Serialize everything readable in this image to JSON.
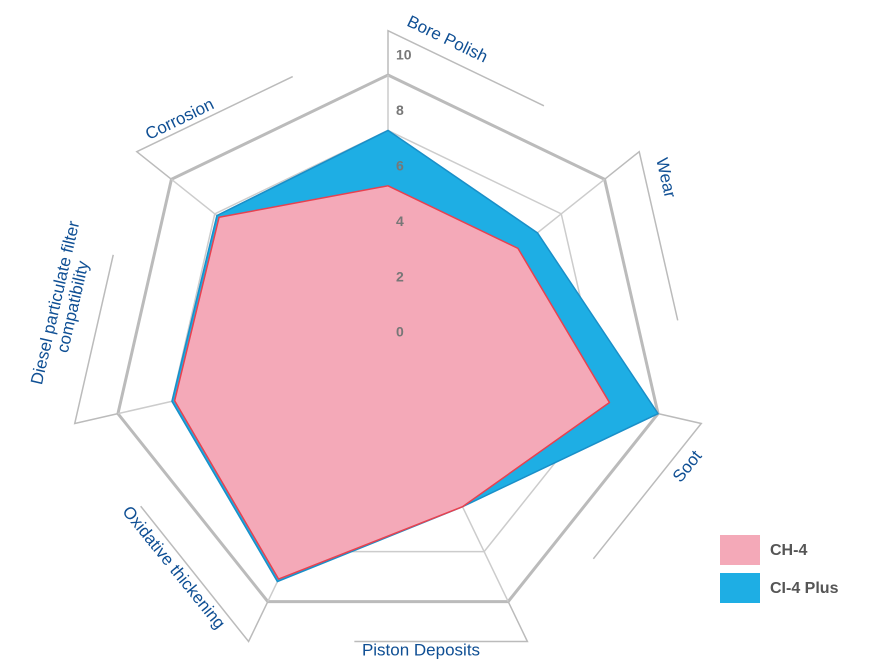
{
  "chart_data": {
    "type": "radar",
    "categories": [
      "Bore Polish",
      "Wear",
      "Soot",
      "Piston Deposits",
      "Oxidative thickening",
      [
        "Diesel particulate filter",
        "compatibility"
      ],
      "Corrosion"
    ],
    "series": [
      {
        "name": "CI-4 Plus",
        "color": "#1eaee4",
        "values": [
          8,
          6.9,
          10,
          6.2,
          9.2,
          8,
          7.9
        ]
      },
      {
        "name": "CH-4",
        "color": "#f4a9b8",
        "values": [
          6,
          6,
          8.2,
          6.2,
          9.1,
          7.9,
          7.8
        ]
      }
    ],
    "rlim": [
      0,
      10
    ],
    "rticks": [
      0,
      2,
      4,
      6,
      8,
      10
    ],
    "grid": true,
    "legend": "lower right"
  }
}
